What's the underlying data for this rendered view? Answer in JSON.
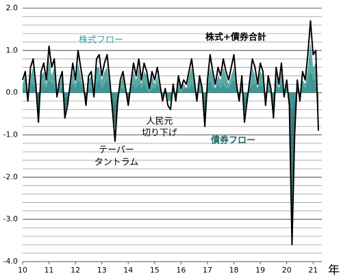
{
  "chart_data": {
    "type": "line",
    "xlabel": "年",
    "annotations": {
      "stock": "株式フロー",
      "total": "株式+債券合計",
      "bond": "債券フロー",
      "yuan": [
        "人民元",
        "切り下げ"
      ],
      "taper": [
        "テーパー",
        "タントラム"
      ]
    },
    "x": [
      10,
      10.1,
      10.2,
      10.3,
      10.4,
      10.5,
      10.6,
      10.7,
      10.8,
      10.9,
      11,
      11.1,
      11.2,
      11.3,
      11.4,
      11.5,
      11.6,
      11.7,
      11.8,
      11.9,
      12,
      12.1,
      12.2,
      12.3,
      12.4,
      12.5,
      12.6,
      12.7,
      12.8,
      12.9,
      13,
      13.1,
      13.2,
      13.3,
      13.4,
      13.5,
      13.6,
      13.7,
      13.8,
      13.9,
      14,
      14.1,
      14.2,
      14.3,
      14.4,
      14.5,
      14.6,
      14.7,
      14.8,
      14.9,
      15,
      15.1,
      15.2,
      15.3,
      15.4,
      15.5,
      15.6,
      15.7,
      15.8,
      15.9,
      16,
      16.1,
      16.2,
      16.3,
      16.4,
      16.5,
      16.6,
      16.7,
      16.8,
      16.9,
      17,
      17.1,
      17.2,
      17.3,
      17.4,
      17.5,
      17.6,
      17.7,
      17.8,
      17.9,
      18,
      18.1,
      18.2,
      18.3,
      18.4,
      18.5,
      18.6,
      18.7,
      18.8,
      18.9,
      19,
      19.1,
      19.2,
      19.3,
      19.4,
      19.5,
      19.6,
      19.7,
      19.8,
      19.9,
      20,
      20.1,
      20.2,
      20.3,
      20.4,
      20.5,
      20.6,
      20.7,
      20.8,
      20.9,
      21,
      21.1,
      21.2
    ],
    "series": [
      {
        "name": "債券フロー",
        "color": "#1d6564",
        "kind": "area",
        "values": [
          0.1,
          0.1,
          -0.2,
          0.2,
          0.2,
          0.1,
          -0.6,
          0.1,
          0.2,
          0.1,
          0.3,
          0.2,
          0.2,
          -0.1,
          0.1,
          0.1,
          -0.5,
          -0.2,
          0.1,
          0.2,
          0.1,
          0.3,
          0.2,
          0.1,
          -0.2,
          0.1,
          0.1,
          -0.1,
          0.2,
          0.3,
          0.1,
          0.2,
          0.3,
          0.1,
          -0.3,
          -0.85,
          -0.2,
          0.1,
          0.1,
          0,
          -0.2,
          0.1,
          0.2,
          0.1,
          0.2,
          0.1,
          0.2,
          0.1,
          0,
          0.1,
          0.1,
          0.2,
          0.1,
          -0.1,
          0,
          -0.1,
          -0.2,
          0.1,
          -0.1,
          0.1,
          0,
          0.1,
          0.1,
          0.1,
          0.2,
          0.1,
          -0.1,
          0.1,
          0,
          -0.6,
          0.1,
          0.3,
          0.1,
          0.1,
          0.2,
          0.1,
          0.2,
          0.1,
          0.1,
          0.2,
          0.3,
          0.1,
          -0.1,
          0.1,
          -0.5,
          -0.1,
          0.1,
          0.2,
          0.2,
          0.1,
          0.2,
          0.1,
          -0.2,
          0.1,
          0,
          -0.4,
          0.2,
          0.1,
          0.2,
          -0.1,
          0.1,
          -0.2,
          -3.1,
          -0.8,
          0.1,
          -0.1,
          0.2,
          0.1,
          0.3,
          0.5,
          0.3,
          0.3,
          -0.7
        ]
      },
      {
        "name": "株式フロー",
        "color": "#3f9c9a",
        "kind": "area",
        "values": [
          0.2,
          0.4,
          0,
          0.4,
          0.6,
          0.1,
          -0.1,
          0.4,
          0.5,
          0.2,
          0.8,
          0.4,
          0.6,
          0,
          0.2,
          0.4,
          -0.1,
          -0.1,
          0.1,
          0.5,
          0.2,
          0.7,
          0.4,
          0.1,
          -0.1,
          0.3,
          0.4,
          0,
          0.6,
          0.6,
          0.3,
          0.5,
          0.6,
          0.2,
          -0.1,
          -0.3,
          0,
          0.2,
          0.4,
          0.1,
          -0.1,
          0.1,
          0.5,
          0.3,
          0.6,
          0.2,
          0.5,
          0.4,
          0.1,
          0.4,
          0.2,
          0.4,
          0.1,
          -0.1,
          0.1,
          -0.2,
          -0.2,
          0.1,
          -0.1,
          0.3,
          0.1,
          0.2,
          0.1,
          0.4,
          0.6,
          0.2,
          -0.1,
          0.3,
          0.1,
          -0.2,
          0.2,
          0.6,
          0.4,
          0.1,
          0.4,
          0.3,
          0.6,
          0.4,
          0.2,
          0.4,
          0.6,
          0.1,
          -0.1,
          0.3,
          -0.2,
          -0.1,
          0.2,
          0.6,
          0.4,
          0.1,
          0.5,
          0.4,
          -0.1,
          0.3,
          0.1,
          -0.2,
          0.4,
          0.1,
          0.5,
          0,
          0.2,
          -0.1,
          -0.5,
          -0.2,
          0.2,
          -0.1,
          0.3,
          0.2,
          0.6,
          1.2,
          0.6,
          0.7,
          -0.2
        ]
      },
      {
        "name": "株式+債券合計",
        "color": "#000000",
        "kind": "line",
        "values": [
          0.3,
          0.5,
          -0.2,
          0.6,
          0.8,
          0.2,
          -0.7,
          0.5,
          0.7,
          0.3,
          1.1,
          0.6,
          0.8,
          -0.1,
          0.3,
          0.5,
          -0.6,
          -0.3,
          0.2,
          0.7,
          0.3,
          1.0,
          0.6,
          0.2,
          -0.3,
          0.4,
          0.5,
          -0.1,
          0.8,
          0.9,
          0.4,
          0.7,
          0.9,
          0.3,
          -0.4,
          -1.15,
          -0.2,
          0.3,
          0.5,
          0.1,
          -0.3,
          0.2,
          0.7,
          0.4,
          0.8,
          0.3,
          0.7,
          0.5,
          0.1,
          0.5,
          0.3,
          0.6,
          0.2,
          -0.2,
          0.1,
          -0.3,
          -0.4,
          0.2,
          -0.2,
          0.4,
          0.1,
          0.3,
          0.2,
          0.5,
          0.8,
          0.3,
          -0.2,
          0.4,
          0.1,
          -0.8,
          0.3,
          0.9,
          0.5,
          0.2,
          0.6,
          0.4,
          0.8,
          0.5,
          0.3,
          0.6,
          0.9,
          0.2,
          -0.2,
          0.4,
          -0.7,
          -0.2,
          0.3,
          0.8,
          0.6,
          0.2,
          0.7,
          0.5,
          -0.3,
          0.4,
          0.1,
          -0.6,
          0.6,
          0.2,
          0.7,
          -0.1,
          0.3,
          -0.3,
          -3.6,
          -1.0,
          0.3,
          -0.2,
          0.5,
          0.3,
          0.9,
          1.7,
          0.9,
          1.0,
          -0.9
        ]
      }
    ],
    "xlim": [
      10,
      21.2
    ],
    "xticks": [
      10,
      11,
      12,
      13,
      14,
      15,
      16,
      17,
      18,
      19,
      20,
      21
    ],
    "ylim": [
      -4,
      2
    ],
    "yticks": [
      {
        "value": 2,
        "label": "2.0"
      },
      {
        "value": 1,
        "label": "1.0"
      },
      {
        "value": 0,
        "label": "0.0"
      },
      {
        "value": -1,
        "label": "-1.0"
      },
      {
        "value": -2,
        "label": "-2.0"
      },
      {
        "value": -3,
        "label": "-3.0"
      },
      {
        "value": -4,
        "label": "-4.0"
      }
    ],
    "grid_yticks": [
      2,
      1.8,
      1.6,
      1.4,
      1.2,
      1,
      0.8,
      0.6,
      0.4,
      0.2,
      0,
      -0.2,
      -0.4,
      -0.6,
      -0.8,
      -1,
      -1.2,
      -1.4,
      -1.6,
      -1.8,
      -2,
      -2.2,
      -2.4,
      -2.6,
      -2.8,
      -3,
      -3.2,
      -3.4,
      -3.6,
      -3.8,
      -4
    ],
    "grid": true
  }
}
